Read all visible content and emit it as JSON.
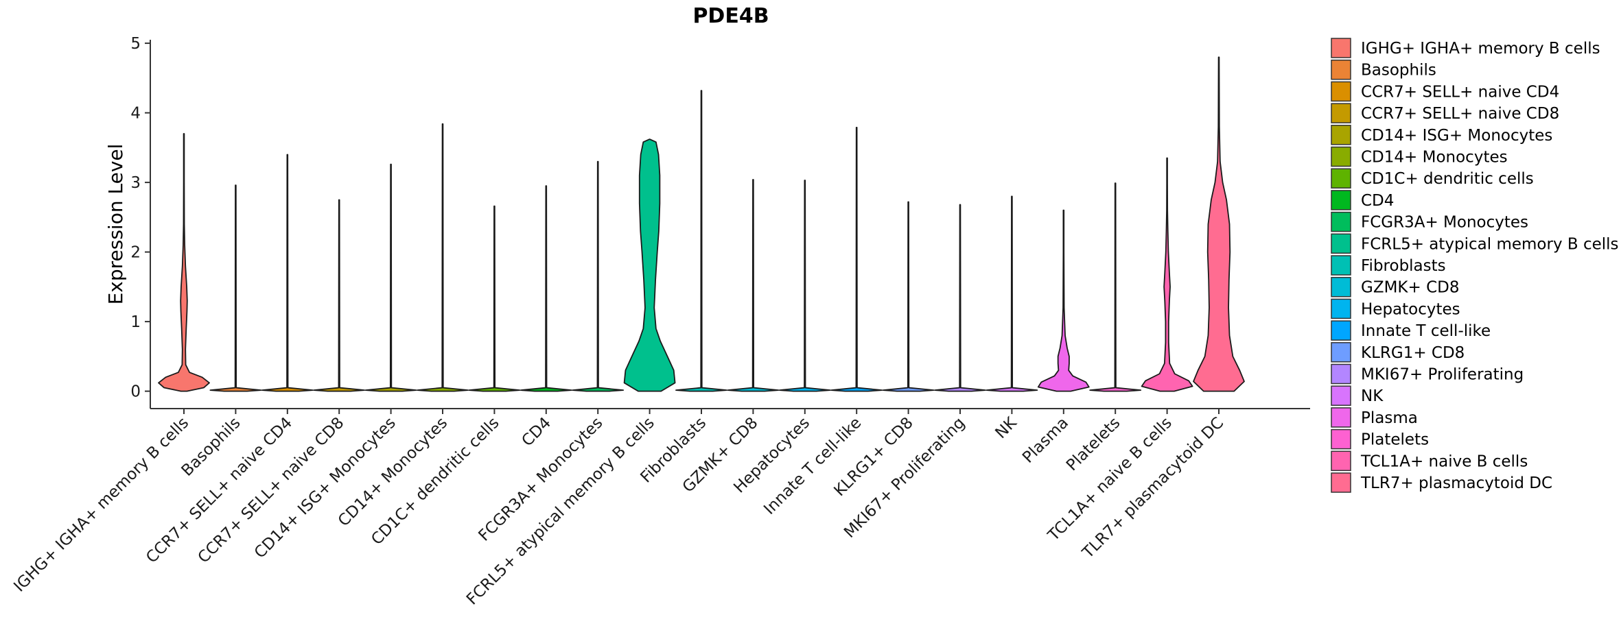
{
  "chart_data": {
    "type": "violin",
    "title": "PDE4B",
    "xlabel": "",
    "ylabel": "Expression Level",
    "ylim": [
      -0.25,
      5.05
    ],
    "yticks": [
      "0",
      "1",
      "2",
      "3",
      "4",
      "5"
    ],
    "legend_position": "right",
    "categories": [
      "IGHG+ IGHA+ memory B cells",
      "Basophils",
      "CCR7+ SELL+ naive CD4",
      "CCR7+ SELL+ naive CD8",
      "CD14+ ISG+ Monocytes",
      "CD14+ Monocytes",
      "CD1C+ dendritic cells",
      "CD4",
      "FCGR3A+ Monocytes",
      "FCRL5+ atypical memory B cells",
      "Fibroblasts",
      "GZMK+ CD8",
      "Hepatocytes",
      "Innate T cell-like",
      "KLRG1+ CD8",
      "MKI67+ Proliferating",
      "NK",
      "Plasma",
      "Platelets",
      "TCL1A+ naive B cells",
      "TLR7+ plasmacytoid DC"
    ],
    "legend_labels": [
      " IGHG+ IGHA+ memory B cells",
      "Basophils",
      "CCR7+ SELL+ naive CD4",
      "CCR7+ SELL+ naive CD8",
      "CD14+ ISG+ Monocytes",
      "CD14+ Monocytes",
      "CD1C+ dendritic cells",
      "CD4",
      "FCGR3A+ Monocytes",
      "FCRL5+ atypical memory B cells",
      "Fibroblasts",
      "GZMK+ CD8",
      "Hepatocytes",
      "Innate T cell-like",
      "KLRG1+ CD8",
      "MKI67+ Proliferating",
      "NK",
      "Plasma",
      "Platelets",
      "TCL1A+ naive B cells",
      "TLR7+ plasmacytoid DC"
    ],
    "colors": [
      "#F8766D",
      "#EB8335",
      "#DA8F00",
      "#C49A00",
      "#A9A400",
      "#89AC00",
      "#5EB300",
      "#00B81F",
      "#00BD5C",
      "#00C08D",
      "#00C0B4",
      "#00BCD6",
      "#00B4EF",
      "#00A6FF",
      "#6E9DFF",
      "#B386FF",
      "#D874FD",
      "#EF67EB",
      "#FD61D1",
      "#FF64B0",
      "#FF6C91"
    ],
    "max_values": [
      3.7,
      2.96,
      3.4,
      2.75,
      3.26,
      3.84,
      2.66,
      2.95,
      3.3,
      3.62,
      4.32,
      3.04,
      3.03,
      3.79,
      2.72,
      2.68,
      2.8,
      2.6,
      2.99,
      3.35,
      4.8
    ],
    "density_profiles": [
      [
        [
          0.0,
          0.12
        ],
        [
          0.05,
          0.78
        ],
        [
          0.12,
          1.0
        ],
        [
          0.2,
          0.72
        ],
        [
          0.27,
          0.22
        ],
        [
          0.38,
          0.07
        ],
        [
          0.6,
          0.06
        ],
        [
          0.9,
          0.09
        ],
        [
          1.15,
          0.12
        ],
        [
          1.3,
          0.13
        ],
        [
          1.5,
          0.11
        ],
        [
          1.8,
          0.06
        ],
        [
          2.1,
          0.03
        ],
        [
          2.4,
          0.015
        ],
        [
          3.0,
          0.006
        ],
        [
          3.7,
          0.0
        ]
      ],
      [
        [
          0.0,
          0.45
        ],
        [
          0.015,
          1.0
        ],
        [
          0.05,
          0.02
        ],
        [
          2.96,
          0.0
        ]
      ],
      [
        [
          0.0,
          0.45
        ],
        [
          0.015,
          1.0
        ],
        [
          0.05,
          0.02
        ],
        [
          3.4,
          0.0
        ]
      ],
      [
        [
          0.0,
          0.45
        ],
        [
          0.015,
          1.0
        ],
        [
          0.05,
          0.02
        ],
        [
          2.75,
          0.0
        ]
      ],
      [
        [
          0.0,
          0.45
        ],
        [
          0.015,
          1.0
        ],
        [
          0.05,
          0.02
        ],
        [
          3.26,
          0.0
        ]
      ],
      [
        [
          0.0,
          0.45
        ],
        [
          0.015,
          1.0
        ],
        [
          0.05,
          0.02
        ],
        [
          3.84,
          0.0
        ]
      ],
      [
        [
          0.0,
          0.45
        ],
        [
          0.015,
          1.0
        ],
        [
          0.05,
          0.02
        ],
        [
          2.66,
          0.0
        ]
      ],
      [
        [
          0.0,
          0.45
        ],
        [
          0.015,
          1.0
        ],
        [
          0.05,
          0.02
        ],
        [
          2.95,
          0.0
        ]
      ],
      [
        [
          0.0,
          0.45
        ],
        [
          0.015,
          1.0
        ],
        [
          0.05,
          0.02
        ],
        [
          3.3,
          0.0
        ]
      ],
      [
        [
          0.0,
          0.45
        ],
        [
          0.12,
          1.0
        ],
        [
          0.3,
          0.95
        ],
        [
          0.5,
          0.7
        ],
        [
          0.72,
          0.42
        ],
        [
          0.9,
          0.25
        ],
        [
          1.2,
          0.18
        ],
        [
          1.6,
          0.23
        ],
        [
          2.0,
          0.3
        ],
        [
          2.3,
          0.36
        ],
        [
          2.7,
          0.4
        ],
        [
          3.1,
          0.4
        ],
        [
          3.4,
          0.35
        ],
        [
          3.58,
          0.25
        ],
        [
          3.62,
          0.0
        ]
      ],
      [
        [
          0.0,
          0.45
        ],
        [
          0.015,
          1.0
        ],
        [
          0.05,
          0.02
        ],
        [
          4.32,
          0.0
        ]
      ],
      [
        [
          0.0,
          0.45
        ],
        [
          0.015,
          1.0
        ],
        [
          0.05,
          0.02
        ],
        [
          3.04,
          0.0
        ]
      ],
      [
        [
          0.0,
          0.45
        ],
        [
          0.015,
          1.0
        ],
        [
          0.05,
          0.02
        ],
        [
          3.03,
          0.0
        ]
      ],
      [
        [
          0.0,
          0.45
        ],
        [
          0.015,
          1.0
        ],
        [
          0.05,
          0.02
        ],
        [
          3.79,
          0.0
        ]
      ],
      [
        [
          0.0,
          0.45
        ],
        [
          0.015,
          1.0
        ],
        [
          0.05,
          0.02
        ],
        [
          2.72,
          0.0
        ]
      ],
      [
        [
          0.0,
          0.45
        ],
        [
          0.015,
          1.0
        ],
        [
          0.05,
          0.02
        ],
        [
          2.68,
          0.0
        ]
      ],
      [
        [
          0.0,
          0.45
        ],
        [
          0.015,
          1.0
        ],
        [
          0.05,
          0.02
        ],
        [
          2.8,
          0.0
        ]
      ],
      [
        [
          0.0,
          0.28
        ],
        [
          0.06,
          1.0
        ],
        [
          0.13,
          0.88
        ],
        [
          0.22,
          0.36
        ],
        [
          0.3,
          0.2
        ],
        [
          0.4,
          0.22
        ],
        [
          0.5,
          0.22
        ],
        [
          0.62,
          0.14
        ],
        [
          0.8,
          0.06
        ],
        [
          1.2,
          0.02
        ],
        [
          2.0,
          0.008
        ],
        [
          2.6,
          0.0
        ]
      ],
      [
        [
          0.0,
          0.45
        ],
        [
          0.015,
          1.0
        ],
        [
          0.05,
          0.02
        ],
        [
          2.99,
          0.0
        ]
      ],
      [
        [
          0.0,
          0.28
        ],
        [
          0.07,
          1.0
        ],
        [
          0.15,
          0.85
        ],
        [
          0.25,
          0.3
        ],
        [
          0.4,
          0.1
        ],
        [
          0.7,
          0.06
        ],
        [
          1.0,
          0.06
        ],
        [
          1.3,
          0.09
        ],
        [
          1.5,
          0.12
        ],
        [
          1.7,
          0.09
        ],
        [
          2.0,
          0.05
        ],
        [
          2.3,
          0.03
        ],
        [
          2.6,
          0.015
        ],
        [
          3.0,
          0.006
        ],
        [
          3.35,
          0.0
        ]
      ],
      [
        [
          0.0,
          0.6
        ],
        [
          0.14,
          1.0
        ],
        [
          0.3,
          0.82
        ],
        [
          0.5,
          0.55
        ],
        [
          0.8,
          0.42
        ],
        [
          1.2,
          0.38
        ],
        [
          1.6,
          0.4
        ],
        [
          2.0,
          0.44
        ],
        [
          2.4,
          0.42
        ],
        [
          2.75,
          0.3
        ],
        [
          3.0,
          0.15
        ],
        [
          3.3,
          0.05
        ],
        [
          3.8,
          0.02
        ],
        [
          4.8,
          0.0
        ]
      ]
    ]
  }
}
